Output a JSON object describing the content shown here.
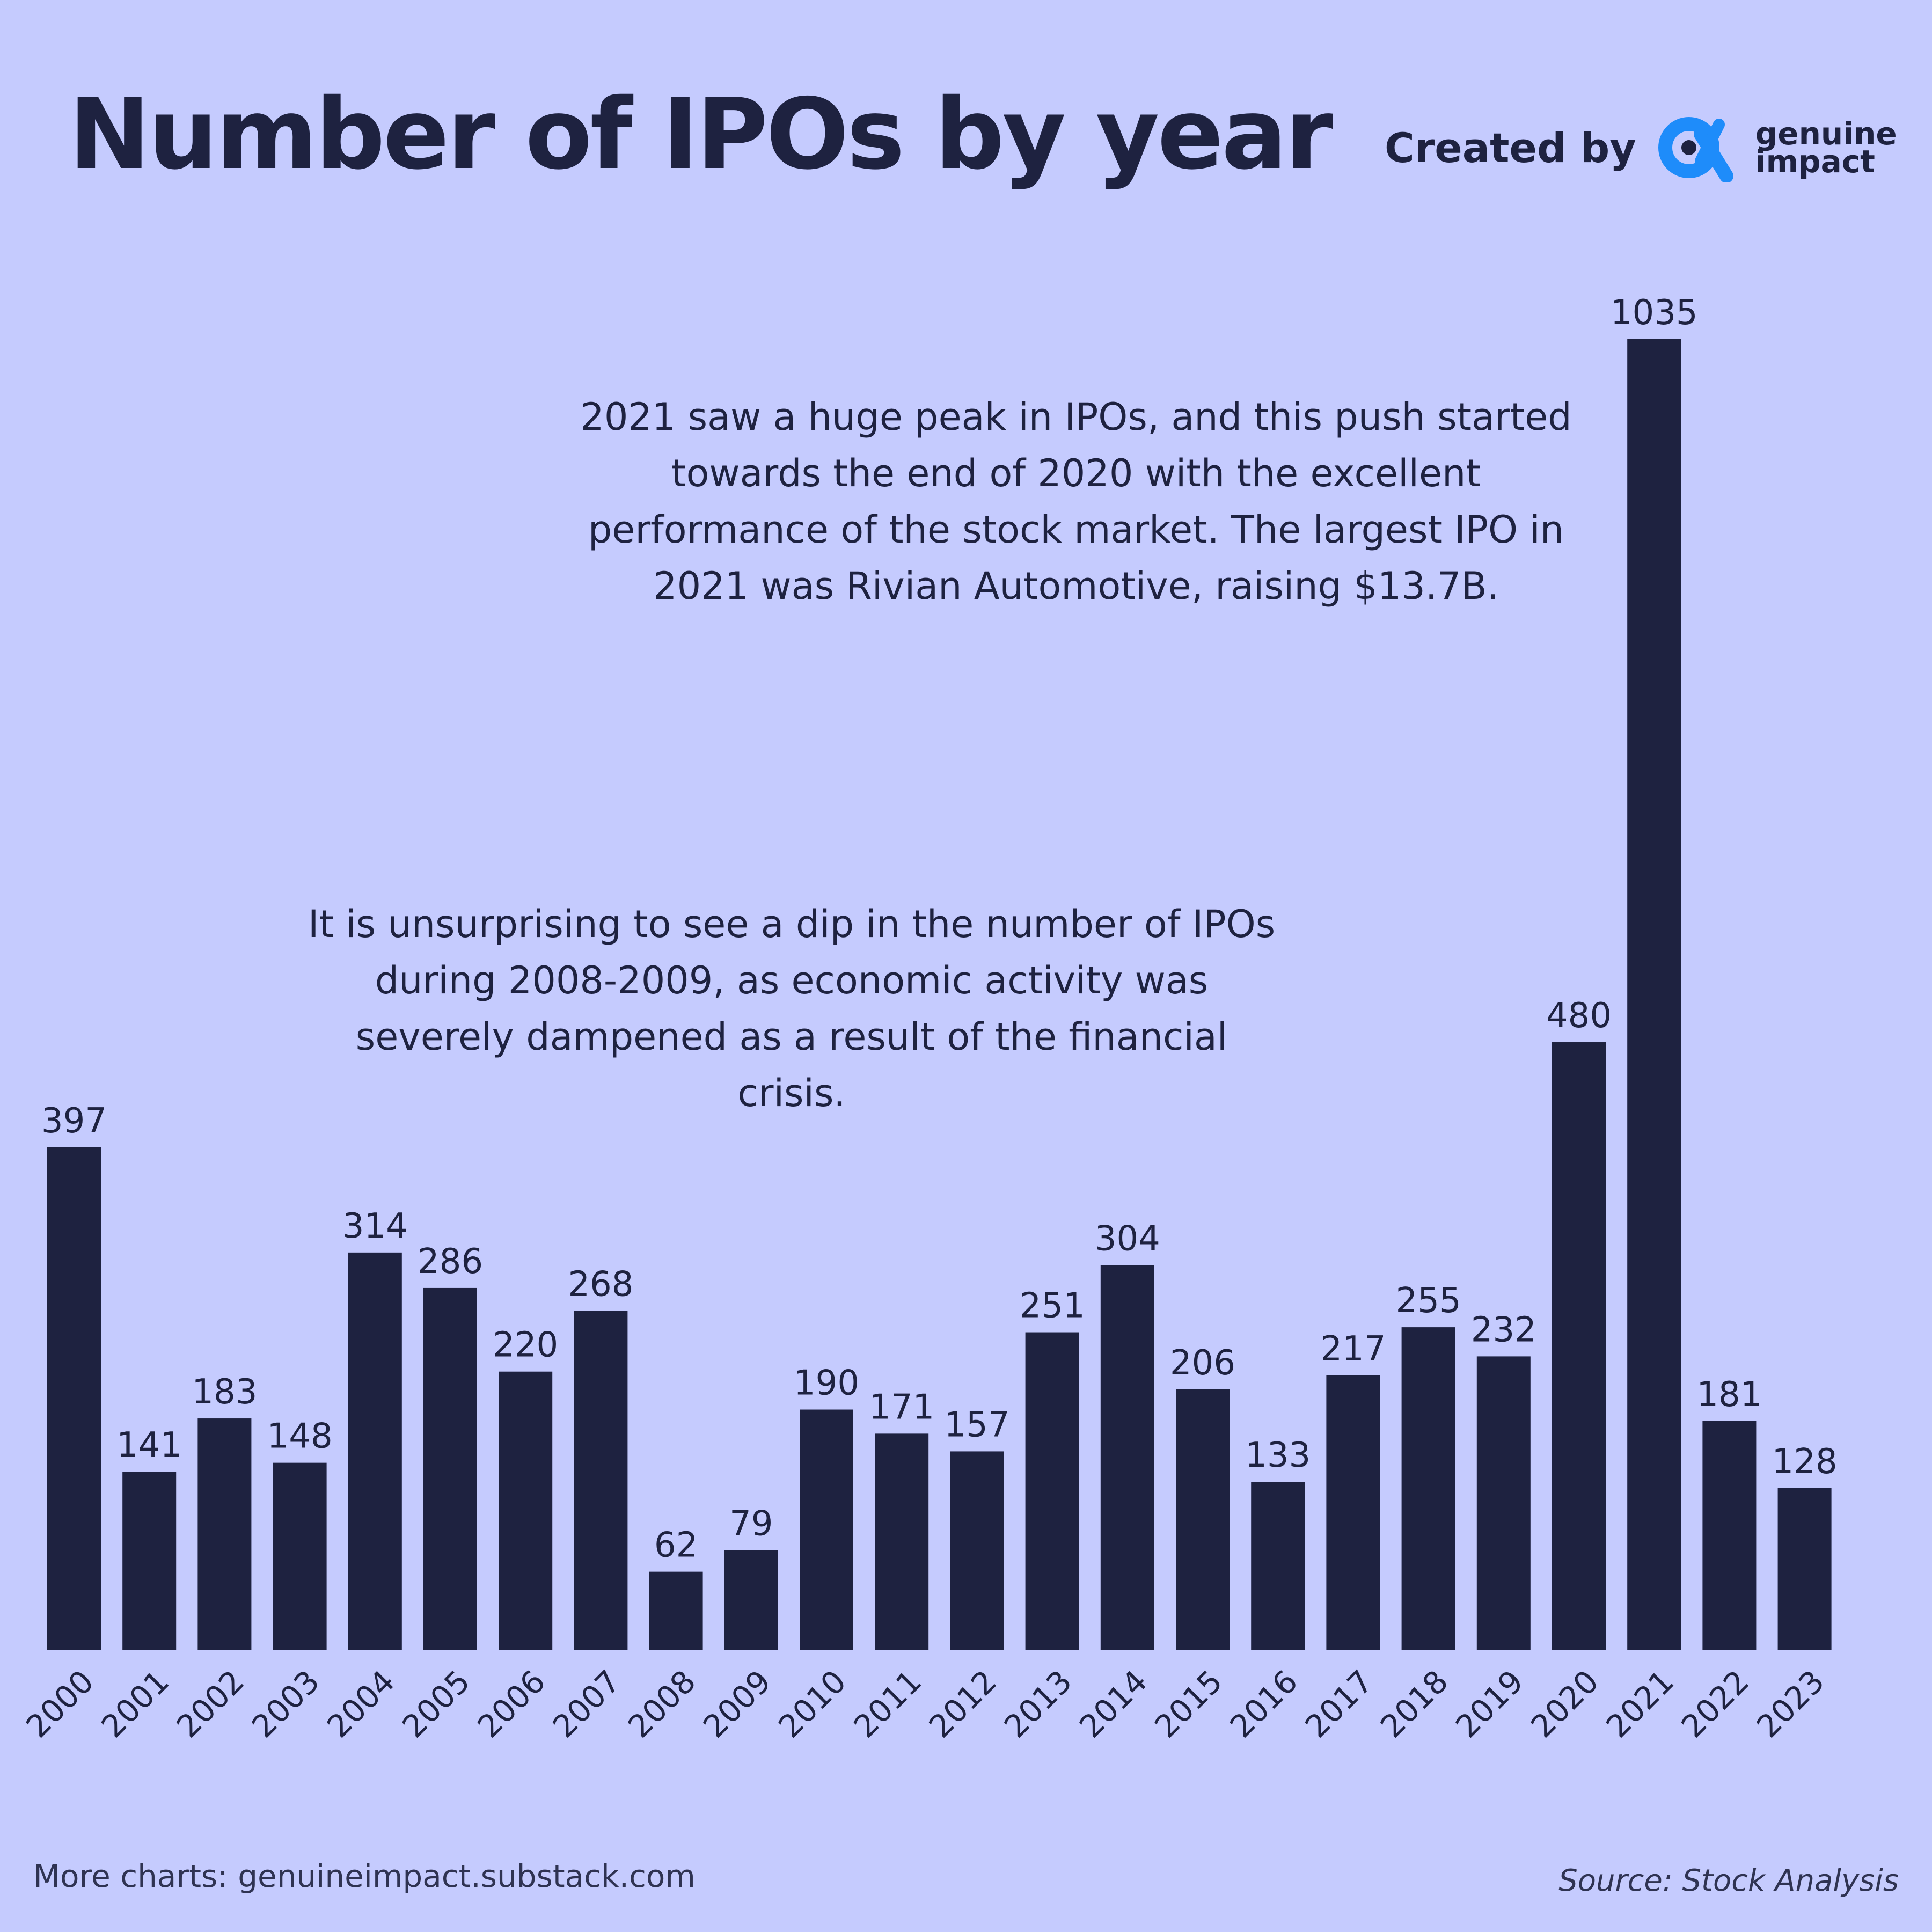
{
  "title": "Number of IPOs by year",
  "credit": {
    "label": "Created by",
    "logo_icon": "alpha-logo-icon",
    "brand_line1": "genuine",
    "brand_line2": "impact",
    "logo_color": "#1e8cfa"
  },
  "annotations": {
    "peak_2021": "2021 saw a huge peak in IPOs, and this push started towards the end of 2020 with the excellent performance of the stock market. The largest IPO in 2021 was Rivian Automotive, raising $13.7B.",
    "dip_2008": "It is unsurprising to see a dip in the number of IPOs during 2008-2009, as economic activity was severely dampened as a result of the financial crisis."
  },
  "footer": {
    "more_charts": "More charts: genuineimpact.substack.com",
    "source": "Source: Stock Analysis"
  },
  "colors": {
    "background": "#c5cbfe",
    "bar": "#1e2240",
    "text": "#1e2240"
  },
  "chart_data": {
    "type": "bar",
    "title": "Number of IPOs by year",
    "xlabel": "",
    "ylabel": "",
    "grid": false,
    "ylim": [
      0,
      1035
    ],
    "categories": [
      "2000",
      "2001",
      "2002",
      "2003",
      "2004",
      "2005",
      "2006",
      "2007",
      "2008",
      "2009",
      "2010",
      "2011",
      "2012",
      "2013",
      "2014",
      "2015",
      "2016",
      "2017",
      "2018",
      "2019",
      "2020",
      "2021",
      "2022",
      "2023"
    ],
    "values": [
      397,
      141,
      183,
      148,
      314,
      286,
      220,
      268,
      62,
      79,
      190,
      171,
      157,
      251,
      304,
      206,
      133,
      217,
      255,
      232,
      480,
      1035,
      181,
      128
    ],
    "value_labels": [
      "397",
      "141",
      "183",
      "148",
      "314",
      "286",
      "220",
      "268",
      "62",
      "79",
      "190",
      "171",
      "157",
      "251",
      "304",
      "206",
      "133",
      "217",
      "255",
      "232",
      "480",
      "1035",
      "181",
      "128"
    ]
  }
}
